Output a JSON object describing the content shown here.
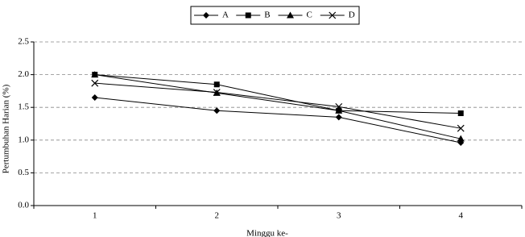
{
  "chart_data": {
    "type": "line",
    "x_label": "Minggu ke-",
    "y_label": "Pertumbuhan Harian (%)",
    "categories": [
      "1",
      "2",
      "3",
      "4"
    ],
    "series": [
      {
        "name": "A",
        "color": "#000000",
        "marker": "diamond",
        "values": [
          1.65,
          1.45,
          1.35,
          0.96
        ]
      },
      {
        "name": "B",
        "color": "#000000",
        "marker": "square",
        "values": [
          2.0,
          1.85,
          1.45,
          1.41
        ]
      },
      {
        "name": "C",
        "color": "#000000",
        "marker": "triangle",
        "values": [
          2.0,
          1.72,
          1.45,
          1.02
        ]
      },
      {
        "name": "D",
        "color": "#000000",
        "marker": "x",
        "values": [
          1.87,
          1.73,
          1.51,
          1.18
        ]
      }
    ],
    "ylim": [
      0,
      2.5
    ],
    "yticks": [
      {
        "value": 0,
        "label": "0.0"
      },
      {
        "value": 0.5,
        "label": "0.5"
      },
      {
        "value": 1,
        "label": "1.0"
      },
      {
        "value": 1.5,
        "label": "1.5"
      },
      {
        "value": 2,
        "label": "2.0"
      },
      {
        "value": 2.5,
        "label": "2.5"
      }
    ],
    "grid": true,
    "legend": "top"
  }
}
